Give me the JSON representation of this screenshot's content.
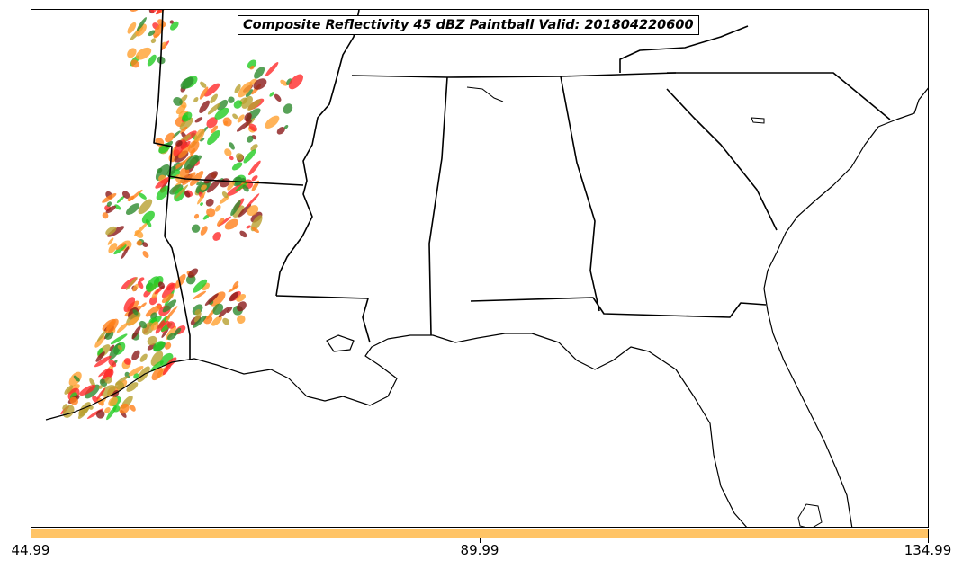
{
  "title": "Composite Reflectivity 45 dBZ Paintball Valid: 201804220600",
  "colorbar": {
    "color": "#ffc466",
    "tick_labels": [
      "44.99",
      "89.99",
      "134.99"
    ]
  },
  "paintball_colors": [
    "#2e8b2e",
    "#ff7f1a",
    "#ff2a2a",
    "#b8a030",
    "#8b1a1a",
    "#22cc22",
    "#ffa030"
  ],
  "map": {
    "region": "Southeastern United States",
    "land_color": "#ffffff",
    "border_color": "#000000"
  }
}
